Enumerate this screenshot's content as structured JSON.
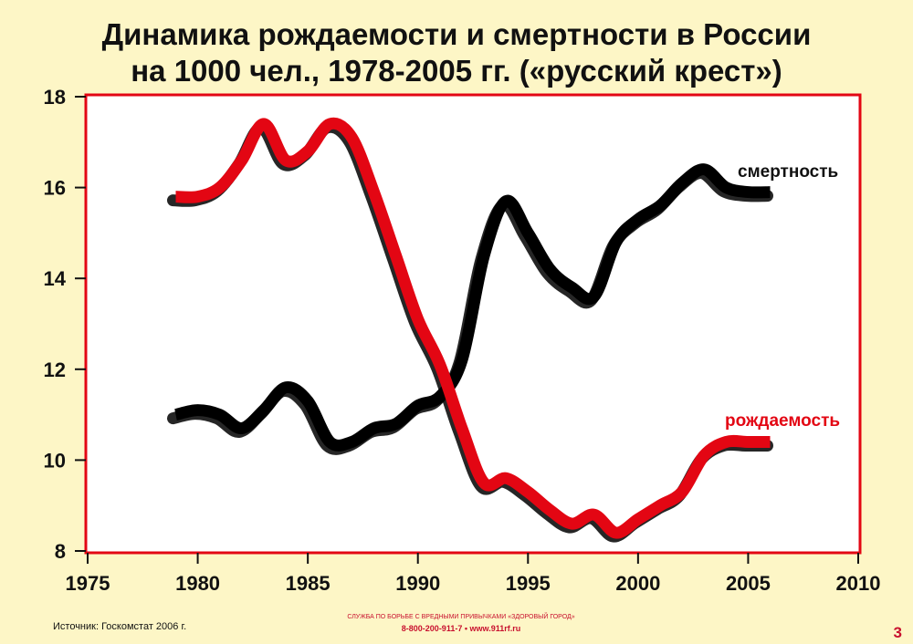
{
  "title_line1": "Динамика рождаемости и смертности в России",
  "title_line2": "на 1000 чел., 1978-2005 гг. («русский крест»)",
  "source": "Источник: Госкомстат 2006 г.",
  "footer": {
    "org": "СЛУЖБА ПО БОРЬБЕ С ВРЕДНЫМИ ПРИВЫЧКАМИ «ЗДОРОВЫЙ ГОРОД»",
    "phone": "8-800-200-911-7",
    "separator": "•",
    "site": "www.911rf.ru"
  },
  "page_number": "3",
  "chart_data": {
    "type": "line",
    "title": "Динамика рождаемости и смертности в России на 1000 чел., 1978-2005 гг. («русский крест»)",
    "xlim": [
      1975,
      2010
    ],
    "ylim": [
      8,
      18
    ],
    "x_ticks": [
      1975,
      1980,
      1985,
      1990,
      1995,
      2000,
      2005,
      2010
    ],
    "y_ticks": [
      8,
      10,
      12,
      14,
      16,
      18
    ],
    "grid": false,
    "series": [
      {
        "name": "смертность",
        "color": "#000000",
        "points": [
          [
            1979,
            11.0
          ],
          [
            1980,
            11.1
          ],
          [
            1981,
            11.0
          ],
          [
            1982,
            10.7
          ],
          [
            1983,
            11.1
          ],
          [
            1984,
            11.6
          ],
          [
            1985,
            11.3
          ],
          [
            1986,
            10.4
          ],
          [
            1987,
            10.4
          ],
          [
            1988,
            10.7
          ],
          [
            1989,
            10.8
          ],
          [
            1990,
            11.2
          ],
          [
            1991,
            11.4
          ],
          [
            1992,
            12.2
          ],
          [
            1993,
            14.5
          ],
          [
            1994,
            15.7
          ],
          [
            1995,
            15.0
          ],
          [
            1996,
            14.2
          ],
          [
            1997,
            13.8
          ],
          [
            1998,
            13.6
          ],
          [
            1999,
            14.8
          ],
          [
            2000,
            15.3
          ],
          [
            2001,
            15.6
          ],
          [
            2002,
            16.1
          ],
          [
            2003,
            16.4
          ],
          [
            2004,
            16.0
          ],
          [
            2005,
            15.9
          ],
          [
            2006,
            15.9
          ]
        ]
      },
      {
        "name": "рождаемость",
        "color": "#e30613",
        "points": [
          [
            1979,
            15.8
          ],
          [
            1980,
            15.8
          ],
          [
            1981,
            16.0
          ],
          [
            1982,
            16.6
          ],
          [
            1983,
            17.4
          ],
          [
            1984,
            16.6
          ],
          [
            1985,
            16.8
          ],
          [
            1986,
            17.4
          ],
          [
            1987,
            17.1
          ],
          [
            1988,
            15.9
          ],
          [
            1989,
            14.5
          ],
          [
            1990,
            13.1
          ],
          [
            1991,
            12.1
          ],
          [
            1992,
            10.7
          ],
          [
            1993,
            9.5
          ],
          [
            1994,
            9.6
          ],
          [
            1995,
            9.3
          ],
          [
            1996,
            8.9
          ],
          [
            1997,
            8.6
          ],
          [
            1998,
            8.8
          ],
          [
            1999,
            8.4
          ],
          [
            2000,
            8.7
          ],
          [
            2001,
            9.0
          ],
          [
            2002,
            9.3
          ],
          [
            2003,
            10.1
          ],
          [
            2004,
            10.4
          ],
          [
            2005,
            10.4
          ],
          [
            2006,
            10.4
          ]
        ]
      }
    ]
  }
}
